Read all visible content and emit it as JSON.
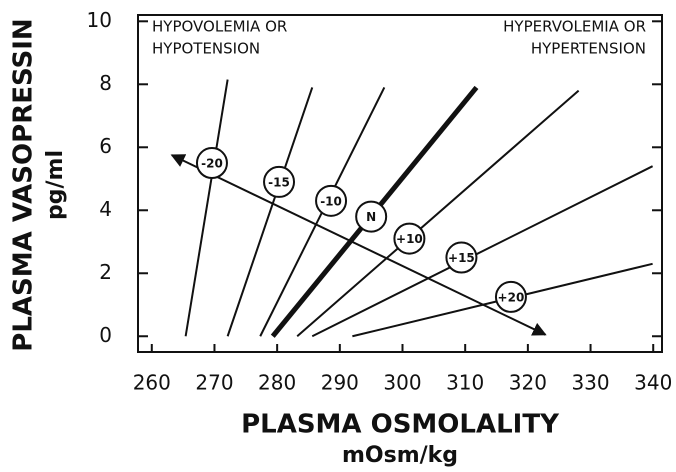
{
  "chart_data": {
    "type": "line",
    "x_label": "PLASMA OSMOLALITY",
    "x_unit": "mOsm/kg",
    "y_label": "PLASMA VASOPRESSIN",
    "y_unit": "pg/ml",
    "xlim": [
      257.8,
      341.4
    ],
    "xticks": [
      260,
      270,
      280,
      290,
      300,
      310,
      320,
      330,
      340
    ],
    "ylim": [
      -0.5,
      10.2
    ],
    "yticks": [
      0,
      2,
      4,
      6,
      8,
      10
    ],
    "color": "#111111",
    "series": [
      {
        "x": [
          265.4,
          272.1
        ],
        "values": [
          0,
          8.15
        ],
        "width": 2
      },
      {
        "x": [
          272.1,
          285.6
        ],
        "values": [
          0,
          7.9
        ],
        "width": 2
      },
      {
        "x": [
          277.3,
          297.1
        ],
        "values": [
          0,
          7.9
        ],
        "width": 2
      },
      {
        "x": [
          279.3,
          311.8
        ],
        "values": [
          0,
          7.9
        ],
        "width": 5
      },
      {
        "x": [
          283.2,
          328.1
        ],
        "values": [
          0,
          7.8
        ],
        "width": 2
      },
      {
        "x": [
          285.6,
          339.9
        ],
        "values": [
          0,
          5.4
        ],
        "width": 2
      },
      {
        "x": [
          292,
          339.9
        ],
        "values": [
          0,
          2.3
        ],
        "width": 2
      }
    ],
    "arrow": {
      "x": [
        263.2,
        322.8
      ],
      "values": [
        5.75,
        0.05
      ]
    },
    "markers": {
      "x": [
        269.6,
        280.3,
        288.6,
        295,
        301.1,
        309.4,
        317.3
      ],
      "values": [
        5.5,
        4.9,
        4.3,
        3.8,
        3.1,
        2.5,
        1.25
      ],
      "labels": [
        "-20",
        "-15",
        "-10",
        "N",
        "+10",
        "+15",
        "+20"
      ]
    },
    "annotations": [
      {
        "lines": [
          "HYPOVOLEMIA OR",
          "HYPOTENSION"
        ],
        "corner": "left"
      },
      {
        "lines": [
          "HYPERVOLEMIA OR",
          "HYPERTENSION"
        ],
        "corner": "right"
      }
    ]
  }
}
